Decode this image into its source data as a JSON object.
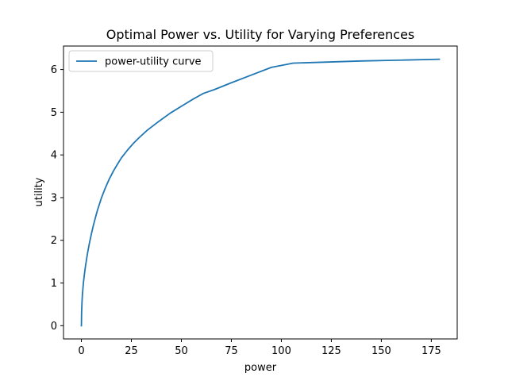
{
  "chart_data": {
    "type": "line",
    "title": "Optimal Power vs. Utility for Varying Preferences",
    "xlabel": "power",
    "ylabel": "utility",
    "xlim": [
      -8.95,
      187.95
    ],
    "ylim": [
      -0.31,
      6.55
    ],
    "xticks": [
      0,
      25,
      50,
      75,
      100,
      125,
      150,
      175
    ],
    "yticks": [
      0,
      1,
      2,
      3,
      4,
      5,
      6
    ],
    "grid": false,
    "legend_position": "upper left",
    "series": [
      {
        "name": "power-utility curve",
        "color": "#1f77b4",
        "x": [
          0,
          0.1,
          0.3,
          0.5,
          1,
          1.5,
          2,
          3,
          4,
          5,
          6,
          7,
          8,
          10,
          12,
          14,
          16,
          18,
          20,
          23,
          26,
          29,
          33,
          38,
          44.5,
          50,
          56,
          61,
          66.5,
          75,
          85,
          95,
          106,
          120,
          140,
          160,
          179
        ],
        "y": [
          0.0,
          0.3,
          0.55,
          0.72,
          1.0,
          1.2,
          1.38,
          1.68,
          1.93,
          2.15,
          2.35,
          2.53,
          2.7,
          2.99,
          3.23,
          3.44,
          3.62,
          3.78,
          3.93,
          4.11,
          4.27,
          4.41,
          4.58,
          4.76,
          4.98,
          5.14,
          5.31,
          5.44,
          5.53,
          5.69,
          5.87,
          6.05,
          6.15,
          6.17,
          6.2,
          6.22,
          6.24
        ]
      }
    ]
  }
}
